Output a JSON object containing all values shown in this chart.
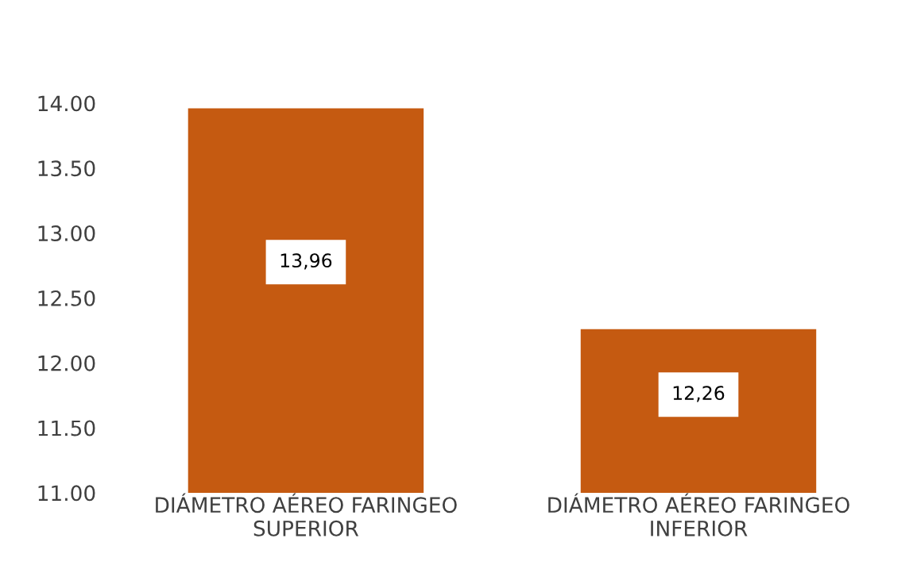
{
  "chart_data": {
    "type": "bar",
    "categories": [
      "DIÁMETRO AÉREO FARINGEO\nSUPERIOR",
      "DIÁMETRO AÉREO FARINGEO\nINFERIOR"
    ],
    "values": [
      13.96,
      12.26
    ],
    "value_labels": [
      "13,96",
      "12,26"
    ],
    "color": "#c55a11",
    "ylim": [
      11,
      14
    ],
    "yticks": [
      {
        "value": 11,
        "label": "11.00"
      },
      {
        "value": 11.5,
        "label": "11.50"
      },
      {
        "value": 12,
        "label": "12.00"
      },
      {
        "value": 12.5,
        "label": "12.50"
      },
      {
        "value": 13,
        "label": "13.00"
      },
      {
        "value": 13.5,
        "label": "13.50"
      },
      {
        "value": 14,
        "label": "14.00"
      }
    ],
    "grid": false,
    "legend": false
  }
}
